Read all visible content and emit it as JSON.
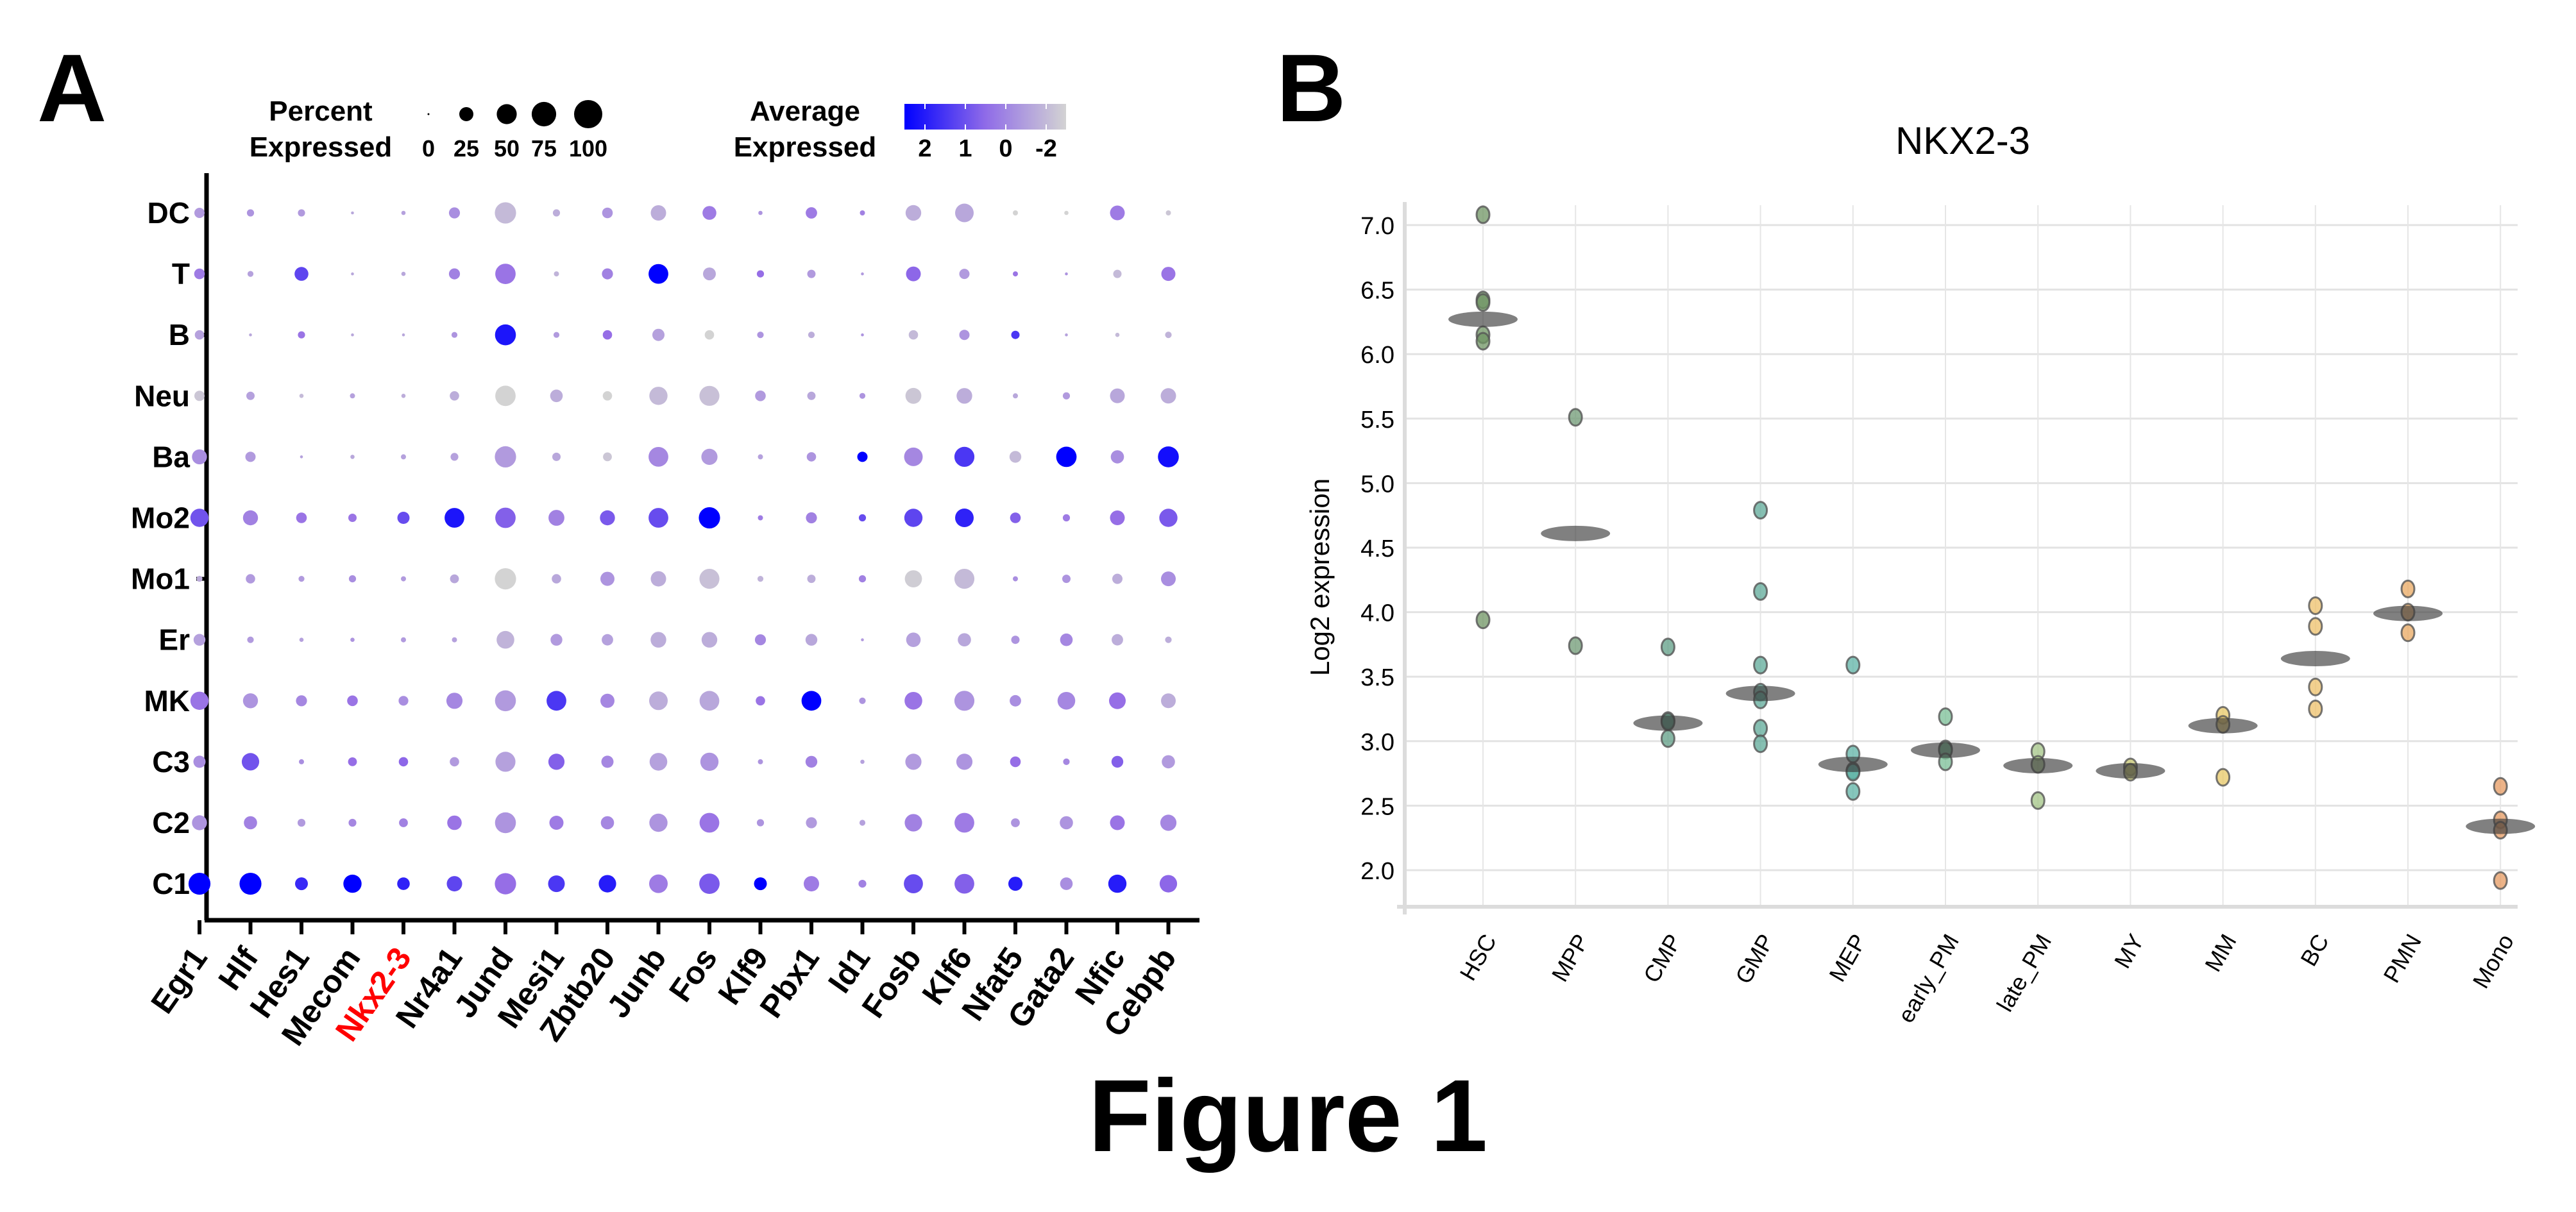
{
  "figure": {
    "caption": "Figure 1",
    "panel_a_label": "A",
    "panel_b_label": "B"
  },
  "chart_data": [
    {
      "type": "dotplot",
      "panel": "A",
      "title": "",
      "genes": [
        "Egr1",
        "Hlf",
        "Hes1",
        "Mecom",
        "Nkx2-3",
        "Nr4a1",
        "Jund",
        "Mesi1",
        "Zbtb20",
        "Junb",
        "Fos",
        "Klf9",
        "Pbx1",
        "Id1",
        "Fosb",
        "Klf6",
        "Nfat5",
        "Gata2",
        "Nfic",
        "Cebpb"
      ],
      "highlighted_gene": "Nkx2-3",
      "highlight_color": "#ff0000",
      "cell_types": [
        "DC",
        "T",
        "B",
        "Neu",
        "Ba",
        "Mo2",
        "Mo1",
        "Er",
        "MK",
        "C3",
        "C2",
        "C1"
      ],
      "size_legend": {
        "title_line1": "Percent",
        "title_line2": "Expressed",
        "values": [
          0,
          25,
          50,
          75,
          100
        ]
      },
      "color_legend": {
        "title_line1": "Average",
        "title_line2": "Expressed",
        "ticks": [
          "2",
          "1",
          "0",
          "-2"
        ],
        "high_color": "#0000ff",
        "low_color": "#d3d3d3",
        "range": [
          -2,
          2
        ]
      },
      "percent_expressed": [
        [
          12,
          6,
          6,
          1,
          2,
          14,
          52,
          6,
          13,
          27,
          22,
          2,
          15,
          3,
          28,
          40,
          3,
          2,
          25,
          3
        ],
        [
          13,
          4,
          22,
          1,
          2,
          14,
          48,
          3,
          14,
          45,
          19,
          6,
          8,
          1,
          25,
          12,
          3,
          1,
          8,
          23
        ],
        [
          10,
          1,
          6,
          1,
          1,
          4,
          50,
          4,
          10,
          17,
          10,
          5,
          5,
          1,
          10,
          12,
          8,
          1,
          2,
          5
        ],
        [
          12,
          8,
          2,
          3,
          2,
          10,
          48,
          18,
          10,
          38,
          46,
          13,
          8,
          4,
          29,
          28,
          3,
          6,
          25,
          27
        ],
        [
          26,
          12,
          1,
          2,
          3,
          7,
          52,
          8,
          9,
          45,
          30,
          3,
          10,
          12,
          40,
          46,
          16,
          48,
          20,
          50
        ],
        [
          38,
          26,
          13,
          8,
          17,
          45,
          48,
          29,
          26,
          45,
          52,
          3,
          14,
          6,
          38,
          40,
          13,
          6,
          25,
          38
        ],
        [
          4,
          10,
          4,
          6,
          3,
          9,
          52,
          10,
          23,
          27,
          46,
          4,
          8,
          6,
          34,
          46,
          3,
          8,
          12,
          25
        ],
        [
          16,
          5,
          2,
          2,
          3,
          3,
          36,
          16,
          15,
          28,
          28,
          14,
          16,
          1,
          24,
          20,
          8,
          18,
          15,
          5
        ],
        [
          38,
          26,
          14,
          13,
          11,
          30,
          50,
          45,
          23,
          40,
          45,
          10,
          45,
          5,
          36,
          46,
          15,
          36,
          32,
          25
        ],
        [
          17,
          35,
          3,
          9,
          10,
          10,
          46,
          30,
          17,
          36,
          38,
          3,
          16,
          2,
          30,
          30,
          13,
          5,
          16,
          20
        ],
        [
          26,
          20,
          7,
          7,
          9,
          24,
          50,
          23,
          20,
          38,
          45,
          6,
          14,
          4,
          35,
          45,
          9,
          20,
          25,
          30
        ],
        [
          55,
          55,
          19,
          38,
          18,
          27,
          52,
          32,
          35,
          40,
          48,
          19,
          27,
          7,
          42,
          45,
          23,
          18,
          38,
          35
        ]
      ],
      "average_expression": [
        [
          -0.3,
          -0.2,
          -0.3,
          -0.5,
          -0.4,
          -0.1,
          -0.8,
          -0.6,
          -0.2,
          -0.6,
          0.2,
          -0.2,
          0.2,
          0.1,
          -0.6,
          -0.5,
          -1.2,
          -1.4,
          0.2,
          -1.0
        ],
        [
          0.2,
          -0.4,
          1.0,
          -0.5,
          -0.5,
          0.1,
          0.3,
          -0.7,
          0.1,
          2.0,
          -0.5,
          0.4,
          -0.3,
          -0.3,
          0.5,
          -0.3,
          0.3,
          -0.2,
          -0.8,
          0.3
        ],
        [
          -0.4,
          -0.5,
          0.3,
          -0.5,
          -0.5,
          -0.2,
          1.7,
          -0.3,
          0.4,
          -0.4,
          -1.2,
          -0.2,
          -0.6,
          -0.2,
          -0.8,
          -0.2,
          1.2,
          -0.4,
          -0.8,
          -0.7
        ],
        [
          -1.0,
          -0.4,
          -0.8,
          -0.4,
          -0.6,
          -0.6,
          -1.5,
          -0.6,
          -1.8,
          -0.8,
          -0.9,
          -0.3,
          -0.5,
          -0.2,
          -1.0,
          -0.6,
          -0.5,
          -0.3,
          -0.5,
          -0.6
        ],
        [
          -0.1,
          -0.3,
          -0.4,
          -0.5,
          -0.4,
          -0.4,
          -0.3,
          -0.5,
          -1.0,
          0.0,
          -0.3,
          -0.4,
          -0.2,
          2.0,
          0.0,
          1.2,
          -0.8,
          2.0,
          -0.1,
          1.8
        ],
        [
          0.8,
          0.1,
          0.3,
          0.3,
          0.9,
          1.7,
          0.6,
          0.1,
          0.7,
          0.9,
          2.0,
          0.2,
          0.1,
          0.9,
          1.0,
          1.5,
          0.6,
          0.2,
          0.4,
          0.7
        ],
        [
          -0.6,
          -0.3,
          -0.3,
          -0.1,
          -0.3,
          -0.5,
          -1.2,
          -0.5,
          -0.2,
          -0.6,
          -0.9,
          -0.7,
          -0.6,
          0.1,
          -1.1,
          -0.8,
          -0.1,
          -0.2,
          -0.6,
          -0.1
        ],
        [
          -0.4,
          -0.3,
          -0.4,
          -0.2,
          -0.3,
          -0.4,
          -0.7,
          -0.3,
          -0.4,
          -0.6,
          -0.6,
          0.0,
          -0.5,
          -0.3,
          -0.4,
          -0.5,
          -0.2,
          0.0,
          -0.6,
          -0.6
        ],
        [
          0.3,
          -0.2,
          0.0,
          0.3,
          -0.1,
          0.0,
          -0.3,
          1.2,
          0.0,
          -0.6,
          -0.5,
          0.3,
          2.0,
          -0.2,
          0.3,
          -0.2,
          -0.1,
          0.0,
          0.4,
          -0.6
        ],
        [
          -0.1,
          0.8,
          -0.1,
          0.4,
          0.5,
          -0.3,
          -0.4,
          0.6,
          0.0,
          -0.4,
          -0.2,
          -0.2,
          0.1,
          -0.4,
          -0.3,
          -0.2,
          0.4,
          0.0,
          0.6,
          -0.3
        ],
        [
          -0.2,
          0.1,
          -0.3,
          0.0,
          0.1,
          0.3,
          -0.2,
          0.2,
          0.0,
          -0.2,
          0.3,
          -0.2,
          -0.3,
          -0.4,
          0.1,
          0.2,
          -0.2,
          -0.2,
          0.3,
          0.0
        ],
        [
          2.0,
          2.0,
          1.4,
          2.0,
          1.5,
          1.0,
          0.4,
          1.2,
          1.6,
          0.2,
          0.7,
          2.0,
          0.2,
          0.1,
          0.9,
          0.6,
          1.6,
          -0.1,
          1.6,
          0.5
        ]
      ]
    },
    {
      "type": "scatter",
      "panel": "B",
      "title": "NKX2-3",
      "xlabel": "",
      "ylabel": "Log2 expression",
      "ylim": [
        1.8,
        7.15
      ],
      "yticks": [
        "2.0",
        "2.5",
        "3.0",
        "3.5",
        "4.0",
        "4.5",
        "5.0",
        "5.5",
        "6.0",
        "6.5",
        "7.0"
      ],
      "grid": true,
      "categories": [
        "HSC",
        "MPP",
        "CMP",
        "GMP",
        "MEP",
        "early_PM",
        "late_PM",
        "MY",
        "MM",
        "BC",
        "PMN",
        "Mono"
      ],
      "colors": [
        "#6f9463",
        "#6f9a74",
        "#5f9e86",
        "#5ea998",
        "#5db3a6",
        "#79bf96",
        "#a3c486",
        "#c5c56e",
        "#e8c866",
        "#eec06a",
        "#eaa860",
        "#e69a60"
      ],
      "points": [
        [
          7.08,
          6.42,
          6.4,
          6.15,
          6.1,
          3.94
        ],
        [
          5.51,
          3.74
        ],
        [
          3.73,
          3.16,
          3.15,
          3.02
        ],
        [
          4.79,
          4.16,
          3.59,
          3.38,
          3.32,
          3.1,
          2.98
        ],
        [
          3.59,
          2.9,
          2.77,
          2.76,
          2.61
        ],
        [
          3.19,
          2.94,
          2.93,
          2.84
        ],
        [
          2.92,
          2.82,
          2.54
        ],
        [
          2.8,
          2.76
        ],
        [
          3.2,
          3.13,
          2.72
        ],
        [
          4.05,
          3.89,
          3.42,
          3.25
        ],
        [
          4.18,
          4.0,
          3.84
        ],
        [
          2.65,
          2.39,
          2.31,
          1.92
        ]
      ],
      "means": [
        6.27,
        4.61,
        3.14,
        3.37,
        2.82,
        2.93,
        2.81,
        2.77,
        3.12,
        3.64,
        3.99,
        2.34
      ]
    }
  ]
}
